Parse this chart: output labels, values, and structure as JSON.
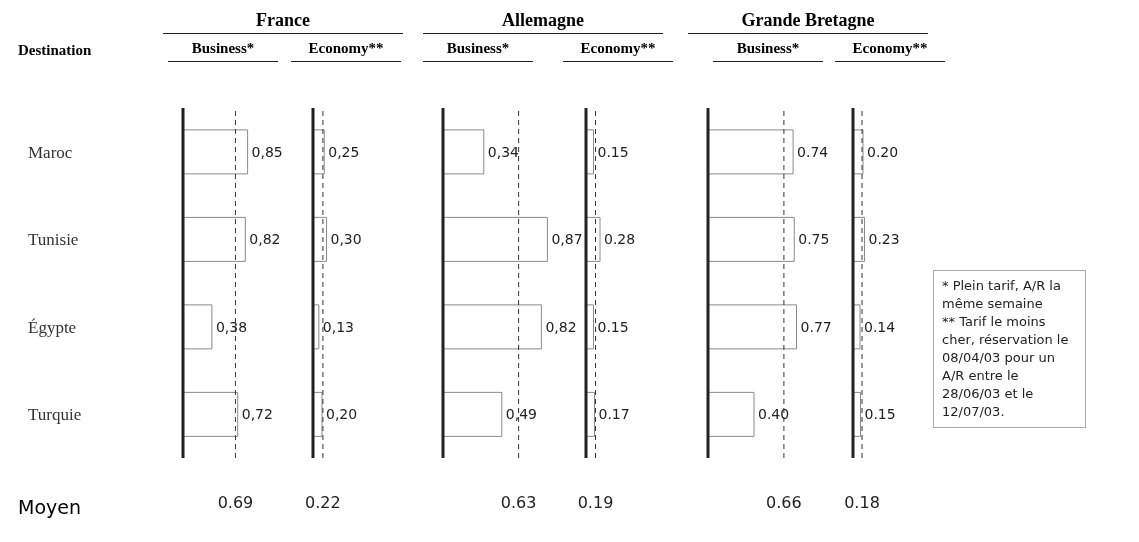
{
  "chart_data": [
    {
      "type": "bar",
      "orientation": "horizontal",
      "title": "France",
      "subtitle": "Business*",
      "ylabel": "Destination",
      "categories": [
        "Maroc",
        "Tunisie",
        "Égypte",
        "Turquie"
      ],
      "values": [
        0.85,
        0.82,
        0.38,
        0.72
      ],
      "value_labels": [
        "0,85",
        "0,82",
        "0,38",
        "0,72"
      ],
      "color": "#ffffff",
      "tick_labels": "y",
      "ref_lines": [
        {
          "axis": "x",
          "value": 0.69,
          "label": "0.69",
          "line_style": "dashed"
        }
      ],
      "annotations": [
        "Moyen"
      ]
    },
    {
      "type": "bar",
      "orientation": "horizontal",
      "subtitle": "Economy**",
      "values": [
        0.25,
        0.3,
        0.13,
        0.2
      ],
      "value_labels": [
        "0,25",
        "0,30",
        "0,13",
        "0,20"
      ],
      "color": "#ffffff",
      "tick_labels": false,
      "ref_lines": [
        {
          "axis": "x",
          "value": 0.22,
          "label": "0.22",
          "line_style": "dashed"
        }
      ]
    },
    {
      "type": "bar",
      "orientation": "horizontal",
      "title": "Allemagne",
      "subtitle": "Business*",
      "values": [
        0.34,
        0.87,
        0.82,
        0.49
      ],
      "value_labels": [
        "0,34",
        "0,87",
        "0,82",
        "0,49"
      ],
      "color": "#ffffff",
      "tick_labels": false,
      "ref_lines": [
        {
          "axis": "x",
          "value": 0.63,
          "label": "0.63",
          "line_style": "dashed"
        }
      ]
    },
    {
      "type": "bar",
      "orientation": "horizontal",
      "subtitle": "Economy**",
      "values": [
        0.15,
        0.28,
        0.15,
        0.17
      ],
      "value_labels": [
        "0.15",
        "0.28",
        "0.15",
        "0.17"
      ],
      "color": "#ffffff",
      "tick_labels": false,
      "ref_lines": [
        {
          "axis": "x",
          "value": 0.19,
          "label": "0.19",
          "line_style": "dashed"
        }
      ]
    },
    {
      "type": "bar",
      "orientation": "horizontal",
      "title": "Grande Bretagne",
      "subtitle": "Business*",
      "values": [
        0.74,
        0.75,
        0.77,
        0.4
      ],
      "value_labels": [
        "0.74",
        "0.75",
        "0.77",
        "0.40"
      ],
      "color": "#ffffff",
      "tick_labels": false,
      "ref_lines": [
        {
          "axis": "x",
          "value": 0.66,
          "label": "0.66",
          "line_style": "dashed"
        }
      ]
    },
    {
      "type": "bar",
      "orientation": "horizontal",
      "subtitle": "Economy**",
      "values": [
        0.2,
        0.23,
        0.14,
        0.15
      ],
      "value_labels": [
        "0.20",
        "0.23",
        "0.14",
        "0.15"
      ],
      "color": "#ffffff",
      "tick_labels": false,
      "ref_lines": [
        {
          "axis": "x",
          "value": 0.18,
          "label": "0.18",
          "line_style": "dashed"
        }
      ],
      "annotations": [
        "* Plein tarif, A/R la même semaine",
        "** Tarif le moins cher, réservation le 08/04/03 pour un A/R entre le 28/06/03 et le 12/07/03."
      ]
    }
  ]
}
